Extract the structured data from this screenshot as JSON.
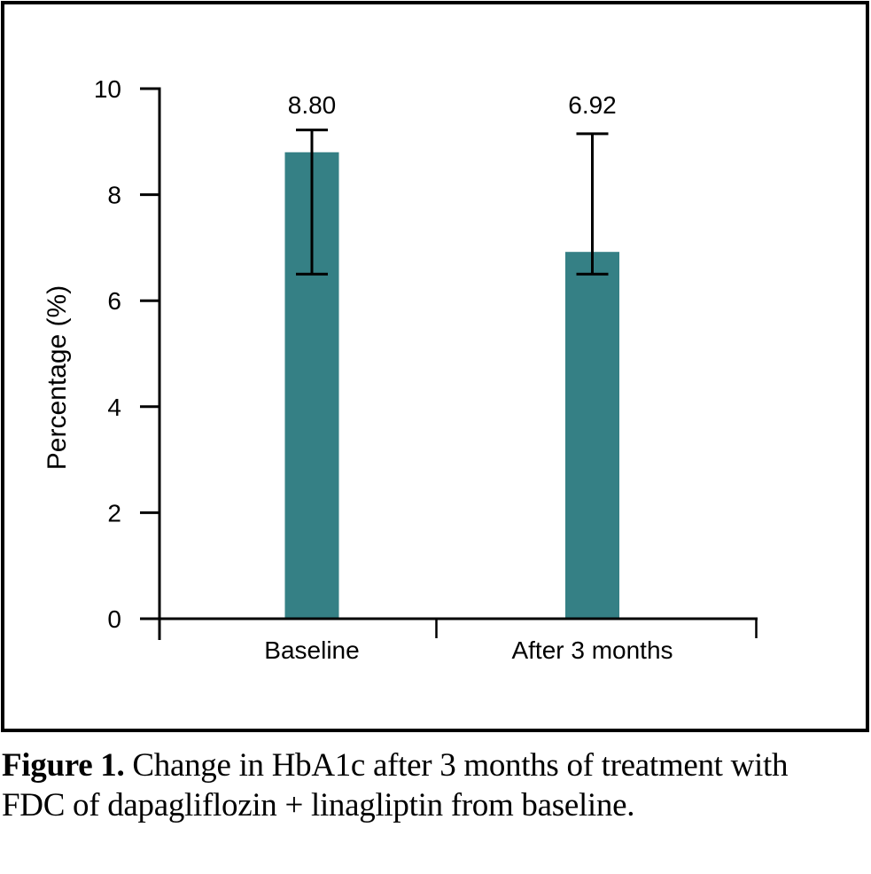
{
  "caption": {
    "label": "Figure 1.",
    "line1": "Change in HbA1c after 3 months of treatment with",
    "line2": "FDC of dapagliflozin + linagliptin from baseline."
  },
  "chart_data": {
    "type": "bar",
    "categories": [
      "Baseline",
      "After 3 months"
    ],
    "values": [
      8.8,
      6.92
    ],
    "value_labels": [
      "8.80",
      "6.92"
    ],
    "error_bars": [
      {
        "low": 6.5,
        "high": 9.22
      },
      {
        "low": 6.5,
        "high": 9.15
      }
    ],
    "title": "",
    "xlabel": "",
    "ylabel": "Percentage (%)",
    "ylim": [
      0,
      10
    ],
    "yticks": [
      0,
      2,
      4,
      6,
      8,
      10
    ],
    "grid": false,
    "legend": "none",
    "bar_color": "#358085",
    "axis_color": "#000000",
    "text_color": "#000000"
  }
}
